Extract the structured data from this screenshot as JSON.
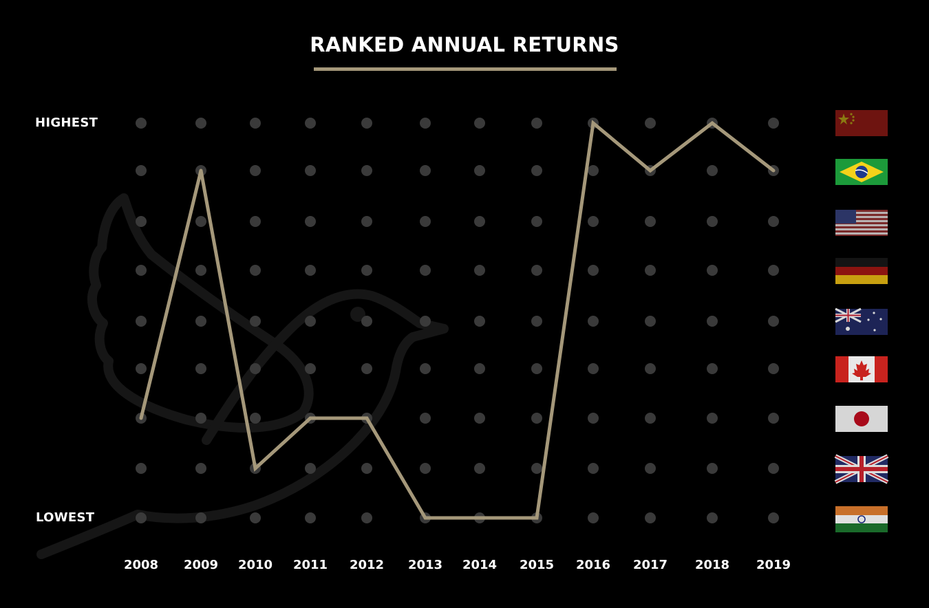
{
  "header": {
    "title": "RANKED ANNUAL RETURNS"
  },
  "axis": {
    "top_label": "HIGHEST",
    "bottom_label": "LOWEST"
  },
  "colors": {
    "background": "#000000",
    "line": "#a5987a",
    "dots": "#3a3a3a",
    "watermark": "#141414",
    "text": "#ffffff"
  },
  "chart_data": {
    "type": "line",
    "categories": [
      "2008",
      "2009",
      "2010",
      "2011",
      "2012",
      "2013",
      "2014",
      "2015",
      "2016",
      "2017",
      "2018",
      "2019"
    ],
    "rank_levels": [
      "China",
      "Brazil",
      "United States",
      "Germany",
      "Australia",
      "Canada",
      "Japan",
      "United Kingdom",
      "India"
    ],
    "rank_level_icons": [
      "china-flag-icon",
      "brazil-flag-icon",
      "usa-flag-icon",
      "germany-flag-icon",
      "australia-flag-icon",
      "canada-flag-icon",
      "japan-flag-icon",
      "uk-flag-icon",
      "india-flag-icon"
    ],
    "series": [
      {
        "values": [
          7,
          2,
          8,
          7,
          7,
          9,
          9,
          9,
          1,
          2,
          1,
          2
        ]
      }
    ],
    "ylim": [
      1,
      9
    ],
    "y_direction": "rank 1 (highest) at top, rank 9 (lowest) at bottom",
    "grid": "dot grid",
    "xlabel": "",
    "ylabel": ""
  }
}
